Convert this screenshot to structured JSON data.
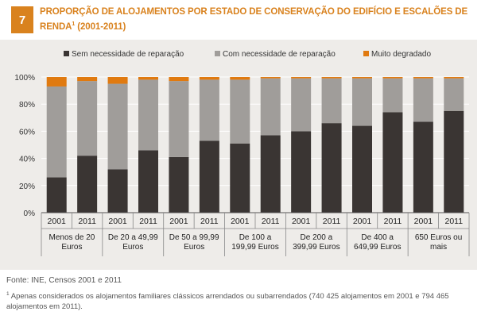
{
  "badge": "7",
  "title_main": "PROPORÇÃO DE ALOJAMENTOS POR ESTADO DE CONSERVAÇÃO DO EDIFÍCIO E ESCALÕES DE RENDA",
  "title_sup": "1",
  "title_years": " (2001-2011)",
  "source": "Fonte: INE, Censos 2001 e 2011",
  "footnote_sup": "1",
  "footnote_text": " Apenas considerados os alojamentos familiares clássicos arrendados ou subarrendados (740 425 alojamentos em 2001 e 794 465 alojamentos em 2011).",
  "colors": {
    "series1": "#3a3533",
    "series2": "#a09d9a",
    "series3": "#e07a10",
    "panel": "#eeece9",
    "grid": "#ffffff"
  },
  "chart_data": {
    "type": "bar",
    "stacked": true,
    "legend_position": "top",
    "ylim": [
      0,
      100
    ],
    "yticks": [
      "0%",
      "20%",
      "40%",
      "60%",
      "80%",
      "100%"
    ],
    "x": [
      "2001",
      "2011",
      "2001",
      "2011",
      "2001",
      "2011",
      "2001",
      "2011",
      "2001",
      "2011",
      "2001",
      "2011",
      "2001",
      "2011"
    ],
    "groups": [
      {
        "label": [
          "Menos de 20",
          "Euros"
        ]
      },
      {
        "label": [
          "De 20 a 49,99",
          "Euros"
        ]
      },
      {
        "label": [
          "De 50 a 99,99",
          "Euros"
        ]
      },
      {
        "label": [
          "De 100 a",
          "199,99 Euros"
        ]
      },
      {
        "label": [
          "De 200 a",
          "399,99 Euros"
        ]
      },
      {
        "label": [
          "De 400 a",
          "649,99 Euros"
        ]
      },
      {
        "label": [
          "650 Euros ou",
          "mais"
        ]
      }
    ],
    "series": [
      {
        "name": "Sem necessidade de reparação",
        "values": [
          26,
          42,
          32,
          46,
          41,
          53,
          51,
          57,
          60,
          66,
          64,
          74,
          67,
          75
        ]
      },
      {
        "name": "Com necessidade de reparação",
        "values": [
          67,
          55,
          63,
          52,
          56,
          45,
          47,
          42,
          39,
          33,
          35,
          25,
          32,
          24
        ]
      },
      {
        "name": "Muito degradado",
        "values": [
          7,
          3,
          5,
          2,
          3,
          2,
          2,
          1,
          1,
          1,
          1,
          1,
          1,
          1
        ]
      }
    ]
  }
}
